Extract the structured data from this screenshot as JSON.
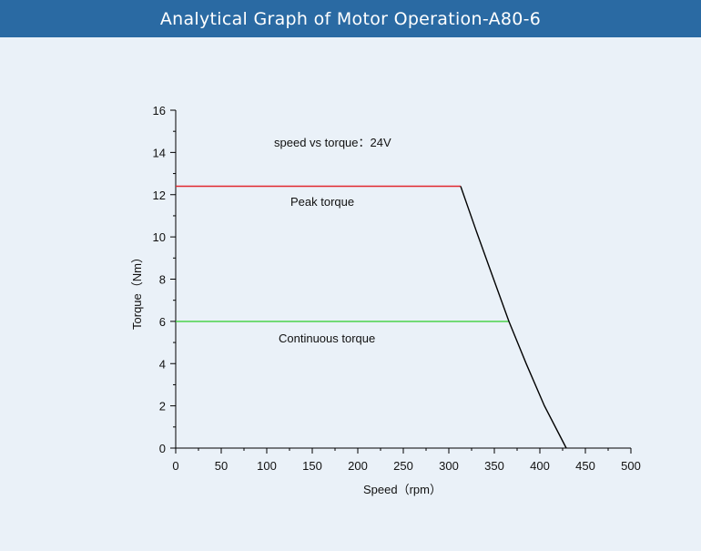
{
  "header": {
    "title": "Analytical Graph of Motor Operation-A80-6"
  },
  "colors": {
    "header_bg": "#2a6aa3",
    "page_bg": "#eaf1f8",
    "peak": "#e0282e",
    "continuous": "#3ccf3c",
    "curve": "#000000"
  },
  "chart_data": {
    "type": "line",
    "annotation": "speed vs torque：24V",
    "xlabel": "Speed（rpm）",
    "ylabel": "Torque（Nm）",
    "xlim": [
      0,
      500
    ],
    "ylim": [
      0,
      16
    ],
    "x_ticks": [
      0,
      50,
      100,
      150,
      200,
      250,
      300,
      350,
      400,
      450,
      500
    ],
    "y_ticks": [
      0,
      2,
      4,
      6,
      8,
      10,
      12,
      14,
      16
    ],
    "grid": false,
    "series": [
      {
        "name": "Peak torque",
        "color": "#e0282e",
        "points": [
          [
            0,
            12.4
          ],
          [
            313,
            12.4
          ]
        ]
      },
      {
        "name": "Continuous torque",
        "color": "#3ccf3c",
        "points": [
          [
            0,
            6.0
          ],
          [
            366,
            6.0
          ]
        ]
      },
      {
        "name": "",
        "color": "#000000",
        "points": [
          [
            313,
            12.4
          ],
          [
            330,
            10.3
          ],
          [
            345,
            8.5
          ],
          [
            366,
            6.0
          ],
          [
            385,
            4.0
          ],
          [
            405,
            2.0
          ],
          [
            429,
            0
          ]
        ]
      }
    ]
  }
}
